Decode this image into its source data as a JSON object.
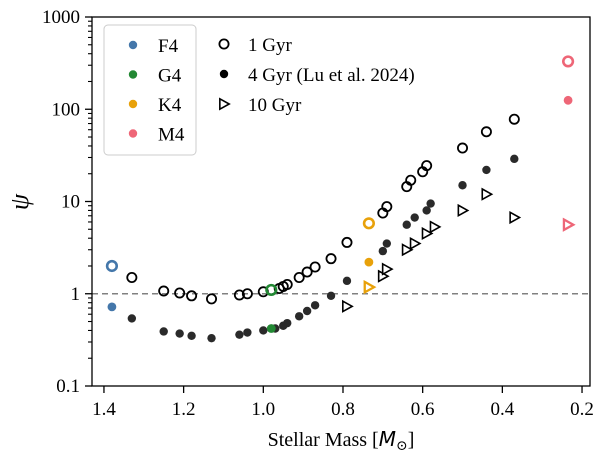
{
  "chart_data": {
    "type": "scatter",
    "xlabel": "Stellar Mass [M⊙]",
    "xlabel_text": "Stellar Mass [",
    "xlabel_symbol": "M",
    "xlabel_subscript": "⊙",
    "xlabel_close": "]",
    "ylabel": "ψ",
    "xlim": [
      1.43,
      0.18
    ],
    "ylim": [
      0.1,
      1000
    ],
    "yscale": "log",
    "x_ticks": [
      {
        "value": 1.4,
        "label": "1.4"
      },
      {
        "value": 1.2,
        "label": "1.2"
      },
      {
        "value": 1.0,
        "label": "1.0"
      },
      {
        "value": 0.8,
        "label": "0.8"
      },
      {
        "value": 0.6,
        "label": "0.6"
      },
      {
        "value": 0.4,
        "label": "0.4"
      },
      {
        "value": 0.2,
        "label": "0.2"
      }
    ],
    "y_ticks": [
      {
        "value": 0.1,
        "label": "0.1"
      },
      {
        "value": 1,
        "label": "1"
      },
      {
        "value": 10,
        "label": "10"
      },
      {
        "value": 100,
        "label": "100"
      },
      {
        "value": 1000,
        "label": "1000"
      }
    ],
    "reference_line": {
      "y": 1,
      "style": "dashed",
      "color": "#808080"
    },
    "legend_stars": {
      "position": "top-left",
      "entries": [
        {
          "label": "F4",
          "color": "#4477aa"
        },
        {
          "label": "G4",
          "color": "#228833"
        },
        {
          "label": "K4",
          "color": "#e8a10a"
        },
        {
          "label": "M4",
          "color": "#ee6677"
        }
      ]
    },
    "legend_ages": {
      "position": "top",
      "entries": [
        {
          "label": "1 Gyr",
          "marker": "open-circle"
        },
        {
          "label": "4 Gyr (Lu et al. 2024)",
          "marker": "filled-circle"
        },
        {
          "label": "10 Gyr",
          "marker": "open-triangle-right"
        }
      ]
    },
    "series": [
      {
        "name": "1 Gyr",
        "marker": "open-circle",
        "color": "#000000",
        "x": [
          1.33,
          1.25,
          1.21,
          1.18,
          1.13,
          1.06,
          1.04,
          1.0,
          0.98,
          0.96,
          0.95,
          0.94,
          0.91,
          0.89,
          0.87,
          0.83,
          0.79,
          0.7,
          0.69,
          0.64,
          0.63,
          0.6,
          0.59,
          0.5,
          0.44,
          0.37
        ],
        "y": [
          1.5,
          1.07,
          1.02,
          0.95,
          0.88,
          0.97,
          1.0,
          1.05,
          1.1,
          1.14,
          1.2,
          1.26,
          1.5,
          1.72,
          1.95,
          2.4,
          3.6,
          7.5,
          8.8,
          14.5,
          17.0,
          21.0,
          24.5,
          38.0,
          57.0,
          78.0
        ]
      },
      {
        "name": "4 Gyr (Lu et al. 2024)",
        "marker": "filled-circle",
        "color": "#2a2a2a",
        "x": [
          1.33,
          1.25,
          1.21,
          1.18,
          1.13,
          1.06,
          1.04,
          1.0,
          0.97,
          0.95,
          0.94,
          0.91,
          0.89,
          0.87,
          0.83,
          0.79,
          0.7,
          0.69,
          0.64,
          0.62,
          0.59,
          0.58,
          0.5,
          0.44,
          0.37
        ],
        "y": [
          0.54,
          0.39,
          0.37,
          0.35,
          0.33,
          0.36,
          0.38,
          0.4,
          0.42,
          0.45,
          0.48,
          0.57,
          0.65,
          0.75,
          0.95,
          1.38,
          2.9,
          3.5,
          5.6,
          6.7,
          8.0,
          9.5,
          15.0,
          22.0,
          29.0
        ]
      },
      {
        "name": "10 Gyr",
        "marker": "open-triangle-right",
        "color": "#000000",
        "x": [
          0.79,
          0.7,
          0.69,
          0.64,
          0.62,
          0.59,
          0.57,
          0.5,
          0.44,
          0.37
        ],
        "y": [
          0.73,
          1.55,
          1.85,
          3.0,
          3.5,
          4.5,
          5.3,
          8.0,
          12.0,
          6.7
        ]
      }
    ],
    "highlighted_stars": [
      {
        "name": "F4",
        "color": "#4477aa",
        "x": 1.38,
        "y_1gyr": 2.0,
        "y_4gyr": 0.72,
        "y_10gyr": null
      },
      {
        "name": "G4",
        "color": "#228833",
        "x": 0.98,
        "y_1gyr": 1.1,
        "y_4gyr": 0.42,
        "y_10gyr": null
      },
      {
        "name": "K4",
        "color": "#e8a10a",
        "x": 0.735,
        "y_1gyr": 5.8,
        "y_4gyr": 2.2,
        "y_10gyr": 1.18
      },
      {
        "name": "M4",
        "color": "#ee6677",
        "x": 0.235,
        "y_1gyr": 330.0,
        "y_4gyr": 125.0,
        "y_10gyr": 5.6
      }
    ]
  }
}
